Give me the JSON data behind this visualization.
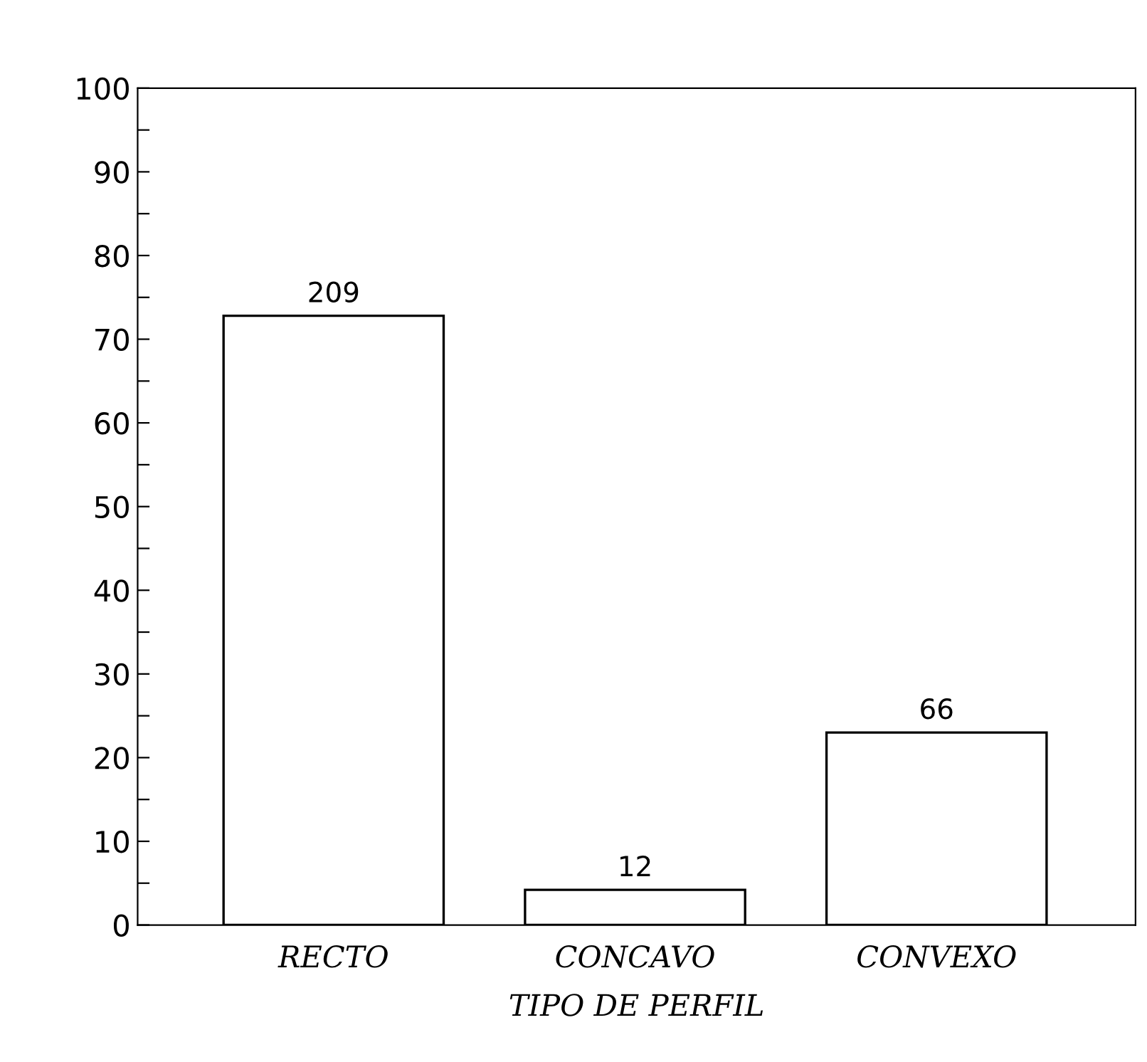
{
  "chart_data": {
    "type": "bar",
    "xlabel": "TIPO DE PERFIL",
    "categories": [
      "RECTO",
      "CONCAVO",
      "CONVEXO"
    ],
    "values": [
      72.8,
      4.2,
      23.0
    ],
    "annotations": [
      {
        "text": "209",
        "x": "RECTO",
        "y": 72.8
      },
      {
        "text": "12",
        "x": "CONCAVO",
        "y": 4.2
      },
      {
        "text": "66",
        "x": "CONVEXO",
        "y": 23.0
      }
    ],
    "color": "#ffffff",
    "ylim": [
      0,
      100
    ],
    "yticks": [
      0,
      {
        "value": 5,
        "label": null
      },
      10,
      {
        "value": 15,
        "label": null
      },
      20,
      {
        "value": 25,
        "label": null
      },
      30,
      {
        "value": 35,
        "label": null
      },
      40,
      {
        "value": 45,
        "label": null
      },
      50,
      {
        "value": 55,
        "label": null
      },
      60,
      {
        "value": 65,
        "label": null
      },
      70,
      {
        "value": 75,
        "label": null
      },
      80,
      {
        "value": 85,
        "label": null
      },
      90,
      {
        "value": 95,
        "label": null
      },
      100
    ],
    "grid": false,
    "legend": false
  }
}
